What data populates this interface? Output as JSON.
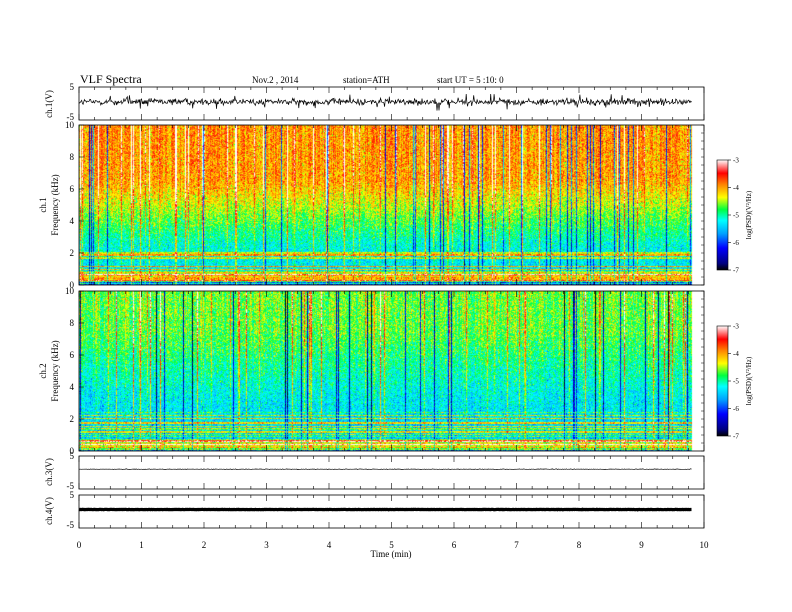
{
  "header": {
    "title": "VLF  Spectra",
    "date": "Nov.2  , 2014",
    "station": "station=ATH",
    "start": "start  UT  =   5  :10: 0"
  },
  "chart_data": [
    {
      "type": "line",
      "panel": "ch1-waveform",
      "ylabel": "ch.1(V)",
      "ylim": [
        -5,
        5
      ],
      "y_tick_labels": [
        "5",
        "-5"
      ],
      "series": [
        {
          "description_only": true,
          "values": []
        }
      ],
      "trace": {
        "baseline": 0.5,
        "noise_amplitude": 0.9,
        "spike_amplitude": 2.5,
        "color": "#000000",
        "t_end_min": 9.8
      }
    },
    {
      "type": "heatmap",
      "panel": "ch1-spectrogram",
      "ylabel": "ch.1\nFrequency  (kHz)",
      "ylim": [
        0,
        10
      ],
      "y_tick_labels": [
        "0",
        "2",
        "4",
        "6",
        "8",
        "10"
      ],
      "x_range_min": [
        0,
        9.8
      ],
      "colorbar": {
        "label": "log(PSD)(V²/Hz)",
        "range": [
          -7,
          -3
        ],
        "tick_labels": [
          "-3",
          "-4",
          "-5",
          "-6",
          "-7"
        ]
      },
      "profile": {
        "low_band_kHz": 2.5,
        "low_level": -5.3,
        "high_level": -4.2
      }
    },
    {
      "type": "heatmap",
      "panel": "ch2-spectrogram",
      "ylabel": "ch.2\nFrequency  (kHz)",
      "ylim": [
        0,
        10
      ],
      "y_tick_labels": [
        "0",
        "2",
        "4",
        "6",
        "8",
        "10"
      ],
      "x_range_min": [
        0,
        9.8
      ],
      "colorbar": {
        "label": "log(PSD)(V²/Hz)",
        "range": [
          -7,
          -3
        ],
        "tick_labels": [
          "-3",
          "-4",
          "-5",
          "-6",
          "-7"
        ]
      },
      "profile": {
        "low_band_kHz": 3.5,
        "low_level": -5.4,
        "high_level": -4.9
      }
    },
    {
      "type": "line",
      "panel": "ch3-waveform",
      "ylabel": "ch.3(V)",
      "ylim": [
        -5,
        5
      ],
      "y_tick_labels": [
        "5",
        "-5"
      ],
      "trace": {
        "baseline": 1.0,
        "noise_amplitude": 0.08,
        "color": "#000000",
        "t_end_min": 9.8
      }
    },
    {
      "type": "line",
      "panel": "ch4-waveform",
      "ylabel": "ch.4(V)",
      "ylim": [
        -5,
        5
      ],
      "y_tick_labels": [
        "5",
        "-5"
      ],
      "trace": {
        "baseline": 0.6,
        "noise_amplitude": 0.05,
        "color": "#000000",
        "t_end_min": 9.8
      }
    }
  ],
  "x_axis": {
    "label": "Time  (min)",
    "range": [
      0,
      10
    ],
    "tick_labels": [
      "0",
      "1",
      "2",
      "3",
      "4",
      "5",
      "6",
      "7",
      "8",
      "9",
      "10"
    ]
  }
}
